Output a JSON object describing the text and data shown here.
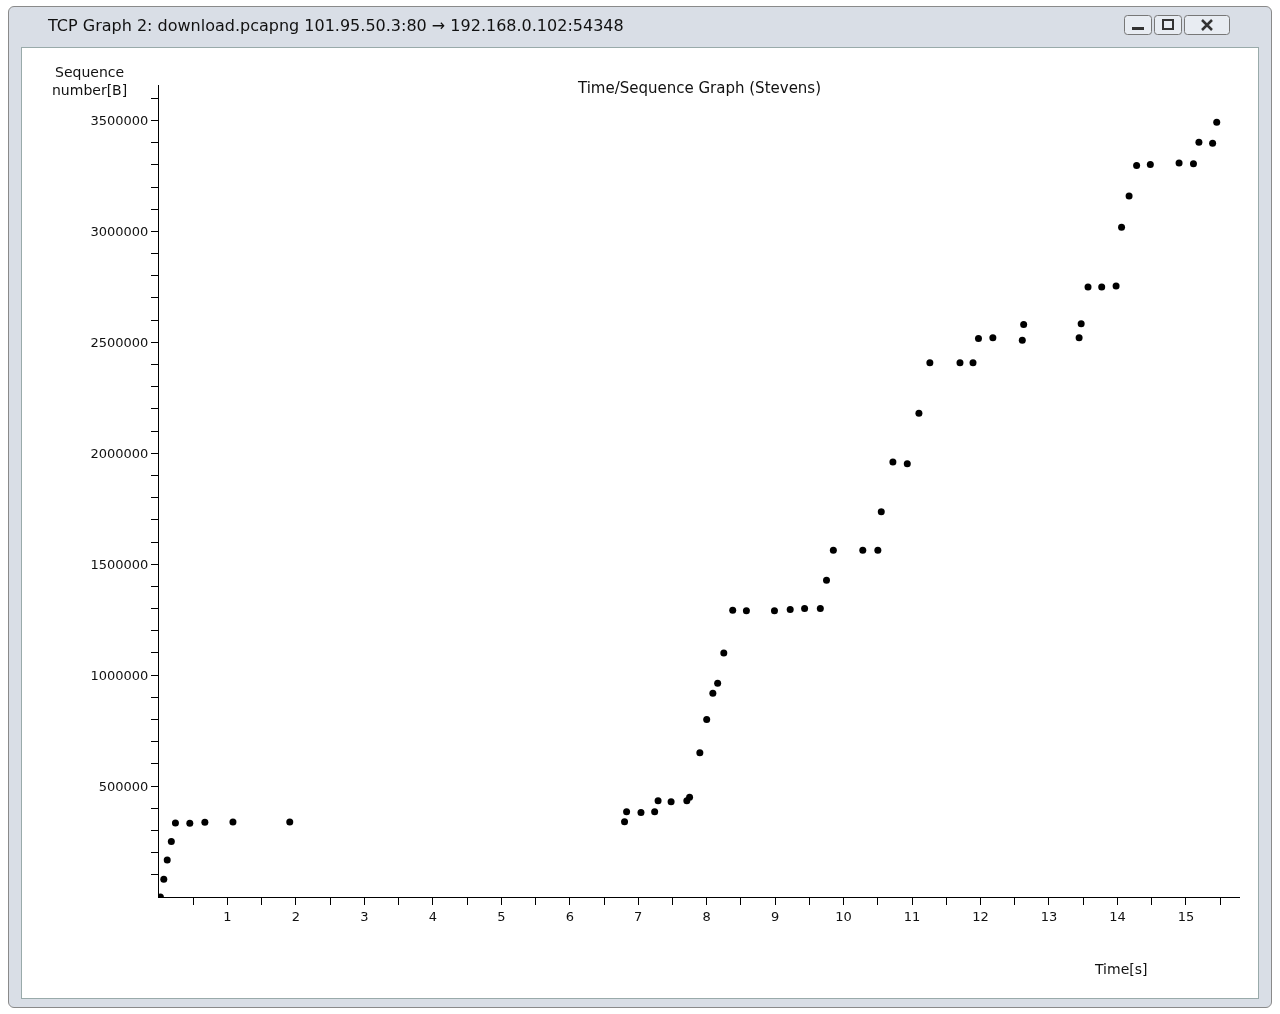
{
  "chart_data": {
    "type": "scatter",
    "title": "TCP Graph 2: download.pcapng 101.95.50.3:80 → 192.168.0.102:54348",
    "subtitle": "Time/Sequence Graph (Stevens)",
    "xlabel": "Time[s]",
    "ylabel": "Sequence number[B]",
    "x": [
      0.02,
      0.07,
      0.12,
      0.18,
      0.24,
      0.45,
      0.67,
      1.08,
      1.91,
      6.8,
      6.83,
      7.04,
      7.24,
      7.29,
      7.48,
      7.71,
      7.75,
      7.9,
      8.0,
      8.09,
      8.16,
      8.25,
      8.38,
      8.58,
      8.99,
      9.22,
      9.43,
      9.66,
      9.75,
      9.85,
      10.28,
      10.5,
      10.55,
      10.72,
      10.93,
      11.1,
      11.26,
      11.7,
      11.89,
      11.97,
      12.18,
      12.61,
      12.63,
      13.44,
      13.47,
      13.57,
      13.77,
      13.98,
      14.06,
      14.17,
      14.28,
      14.48,
      14.9,
      15.11,
      15.19,
      15.39,
      15.45
    ],
    "series": [
      {
        "color": "#000000",
        "values": [
          0,
          80000,
          167000,
          250000,
          333000,
          332000,
          337000,
          338000,
          338000,
          339000,
          384000,
          381000,
          384000,
          434000,
          429000,
          434000,
          450000,
          650000,
          800000,
          918000,
          963000,
          1100000,
          1293000,
          1290000,
          1290000,
          1296000,
          1300000,
          1300000,
          1428000,
          1563000,
          1563000,
          1563000,
          1736000,
          1961000,
          1953000,
          2180000,
          2408000,
          2408000,
          2408000,
          2517000,
          2521000,
          2510000,
          2580000,
          2521000,
          2584000,
          2749000,
          2749000,
          2754000,
          3019000,
          3160000,
          3297000,
          3302000,
          3308000,
          3305000,
          3402000,
          3398000,
          3492000
        ]
      }
    ],
    "xlim": [
      0,
      15.79
    ],
    "ylim": [
      0,
      3660000
    ],
    "xticks": [
      {
        "value": 0.5,
        "label": null
      },
      1,
      {
        "value": 1.5,
        "label": null
      },
      2,
      {
        "value": 2.5,
        "label": null
      },
      3,
      {
        "value": 3.5,
        "label": null
      },
      4,
      {
        "value": 4.5,
        "label": null
      },
      5,
      {
        "value": 5.5,
        "label": null
      },
      6,
      {
        "value": 6.5,
        "label": null
      },
      7,
      {
        "value": 7.5,
        "label": null
      },
      8,
      {
        "value": 8.5,
        "label": null
      },
      9,
      {
        "value": 9.5,
        "label": null
      },
      10,
      {
        "value": 10.5,
        "label": null
      },
      11,
      {
        "value": 11.5,
        "label": null
      },
      12,
      {
        "value": 12.5,
        "label": null
      },
      13,
      {
        "value": 13.5,
        "label": null
      },
      14,
      {
        "value": 14.5,
        "label": null
      },
      15,
      {
        "value": 15.5,
        "label": null
      }
    ],
    "yticks": [
      {
        "value": 100000,
        "label": null
      },
      {
        "value": 200000,
        "label": null
      },
      {
        "value": 300000,
        "label": null
      },
      {
        "value": 400000,
        "label": null
      },
      500000,
      {
        "value": 600000,
        "label": null
      },
      {
        "value": 700000,
        "label": null
      },
      {
        "value": 800000,
        "label": null
      },
      {
        "value": 900000,
        "label": null
      },
      1000000,
      {
        "value": 1100000,
        "label": null
      },
      {
        "value": 1200000,
        "label": null
      },
      {
        "value": 1300000,
        "label": null
      },
      {
        "value": 1400000,
        "label": null
      },
      1500000,
      {
        "value": 1600000,
        "label": null
      },
      {
        "value": 1700000,
        "label": null
      },
      {
        "value": 1800000,
        "label": null
      },
      {
        "value": 1900000,
        "label": null
      },
      2000000,
      {
        "value": 2100000,
        "label": null
      },
      {
        "value": 2200000,
        "label": null
      },
      {
        "value": 2300000,
        "label": null
      },
      {
        "value": 2400000,
        "label": null
      },
      2500000,
      {
        "value": 2600000,
        "label": null
      },
      {
        "value": 2700000,
        "label": null
      },
      {
        "value": 2800000,
        "label": null
      },
      {
        "value": 2900000,
        "label": null
      },
      3000000,
      {
        "value": 3100000,
        "label": null
      },
      {
        "value": 3200000,
        "label": null
      },
      {
        "value": 3300000,
        "label": null
      },
      {
        "value": 3400000,
        "label": null
      },
      3500000,
      {
        "value": 3600000,
        "label": null
      }
    ],
    "marker": "circle"
  }
}
